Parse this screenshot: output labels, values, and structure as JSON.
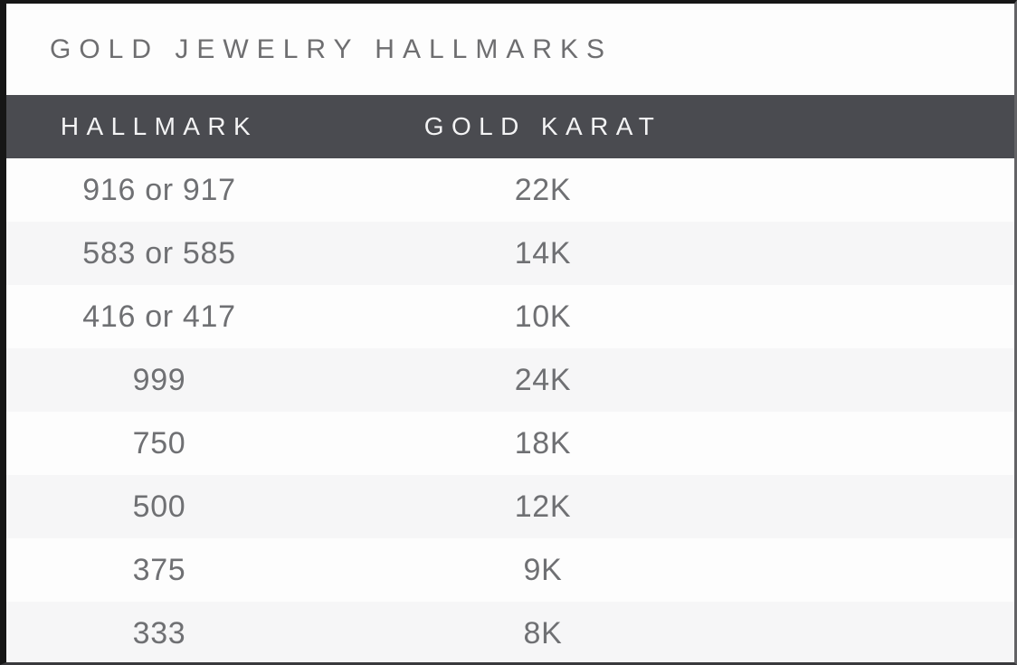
{
  "page": {
    "title": "GOLD JEWELRY HALLMARKS"
  },
  "table": {
    "columns": [
      "HALLMARK",
      "GOLD KARAT"
    ],
    "rows": [
      {
        "hallmark": "916 or 917",
        "karat": "22K"
      },
      {
        "hallmark": "583 or 585",
        "karat": "14K"
      },
      {
        "hallmark": "416 or 417",
        "karat": "10K"
      },
      {
        "hallmark": "999",
        "karat": "24K"
      },
      {
        "hallmark": "750",
        "karat": "18K"
      },
      {
        "hallmark": "500",
        "karat": "12K"
      },
      {
        "hallmark": "375",
        "karat": "9K"
      },
      {
        "hallmark": "333",
        "karat": "8K"
      }
    ]
  },
  "chart_data": {
    "type": "table",
    "title": "GOLD JEWELRY HALLMARKS",
    "columns": [
      "HALLMARK",
      "GOLD KARAT"
    ],
    "categories": [
      "916 or 917",
      "583 or 585",
      "416 or 417",
      "999",
      "750",
      "500",
      "375",
      "333"
    ],
    "values": [
      "22K",
      "14K",
      "10K",
      "24K",
      "18K",
      "12K",
      "9K",
      "8K"
    ],
    "legend_position": "none",
    "grid": false
  },
  "colors": {
    "header_bg": "#4a4b50",
    "header_text": "#f3f3f4",
    "alt_row_bg": "#f6f6f7",
    "row_bg": "#fdfdfd",
    "title_text": "#6e6e70",
    "body_text": "#6f7073",
    "border": "#161616"
  }
}
